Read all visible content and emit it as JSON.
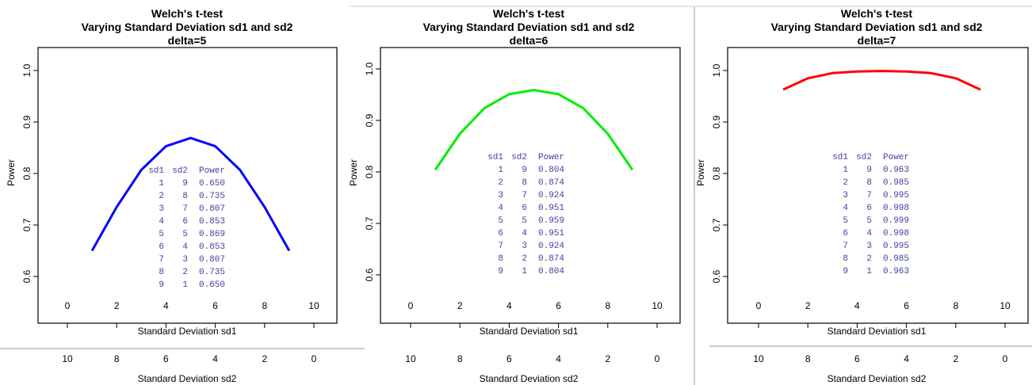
{
  "chart_data": [
    {
      "type": "line",
      "title": [
        "Welch's t-test",
        "Varying Standard Deviation sd1 and sd2",
        "delta=5"
      ],
      "xlabel": "Standard Deviation sd1",
      "ylabel": "Power",
      "x2label": "Standard Deviation sd2",
      "xlim": [
        0,
        10
      ],
      "ylim": [
        0.6,
        1.0
      ],
      "xticks": [
        0,
        2,
        4,
        6,
        8,
        10
      ],
      "yticks": [
        0.6,
        0.7,
        0.8,
        0.9,
        1.0
      ],
      "x2ticks": [
        10,
        8,
        6,
        4,
        2,
        0
      ],
      "color": "#0000ff",
      "x": [
        1,
        2,
        3,
        4,
        5,
        6,
        7,
        8,
        9
      ],
      "y": [
        0.65,
        0.735,
        0.807,
        0.853,
        0.869,
        0.853,
        0.807,
        0.735,
        0.65
      ],
      "table": {
        "headers": [
          "sd1",
          "sd2",
          "Power"
        ],
        "rows": [
          [
            "1",
            "9",
            "0.650"
          ],
          [
            "2",
            "8",
            "0.735"
          ],
          [
            "3",
            "7",
            "0.807"
          ],
          [
            "4",
            "6",
            "0.853"
          ],
          [
            "5",
            "5",
            "0.869"
          ],
          [
            "6",
            "4",
            "0.853"
          ],
          [
            "7",
            "3",
            "0.807"
          ],
          [
            "8",
            "2",
            "0.735"
          ],
          [
            "9",
            "1",
            "0.650"
          ]
        ]
      }
    },
    {
      "type": "line",
      "title": [
        "Welch's t-test",
        "Varying Standard Deviation sd1 and sd2",
        "delta=6"
      ],
      "xlabel": "Standard Deviation sd1",
      "ylabel": "Power",
      "x2label": "Standard Deviation sd2",
      "xlim": [
        0,
        10
      ],
      "ylim": [
        0.6,
        1.0
      ],
      "xticks": [
        0,
        2,
        4,
        6,
        8,
        10
      ],
      "yticks": [
        0.6,
        0.7,
        0.8,
        0.9,
        1.0
      ],
      "x2ticks": [
        10,
        8,
        6,
        4,
        2,
        0
      ],
      "color": "#00ee00",
      "x": [
        1,
        2,
        3,
        4,
        5,
        6,
        7,
        8,
        9
      ],
      "y": [
        0.804,
        0.874,
        0.924,
        0.951,
        0.959,
        0.951,
        0.924,
        0.874,
        0.804
      ],
      "table": {
        "headers": [
          "sd1",
          "sd2",
          "Power"
        ],
        "rows": [
          [
            "1",
            "9",
            "0.804"
          ],
          [
            "2",
            "8",
            "0.874"
          ],
          [
            "3",
            "7",
            "0.924"
          ],
          [
            "4",
            "6",
            "0.951"
          ],
          [
            "5",
            "5",
            "0.959"
          ],
          [
            "6",
            "4",
            "0.951"
          ],
          [
            "7",
            "3",
            "0.924"
          ],
          [
            "8",
            "2",
            "0.874"
          ],
          [
            "9",
            "1",
            "0.804"
          ]
        ]
      }
    },
    {
      "type": "line",
      "title": [
        "Welch's t-test",
        "Varying Standard Deviation sd1 and sd2",
        "delta=7"
      ],
      "xlabel": "Standard Deviation sd1",
      "ylabel": "Power",
      "x2label": "Standard Deviation sd2",
      "xlim": [
        0,
        10
      ],
      "ylim": [
        0.6,
        1.0
      ],
      "xticks": [
        0,
        2,
        4,
        6,
        8,
        10
      ],
      "yticks": [
        0.6,
        0.7,
        0.8,
        0.9,
        1.0
      ],
      "x2ticks": [
        10,
        8,
        6,
        4,
        2,
        0
      ],
      "color": "#ff0000",
      "x": [
        1,
        2,
        3,
        4,
        5,
        6,
        7,
        8,
        9
      ],
      "y": [
        0.963,
        0.985,
        0.995,
        0.998,
        0.999,
        0.998,
        0.995,
        0.985,
        0.963
      ],
      "table": {
        "headers": [
          "sd1",
          "sd2",
          "Power"
        ],
        "rows": [
          [
            "1",
            "9",
            "0.963"
          ],
          [
            "2",
            "8",
            "0.985"
          ],
          [
            "3",
            "7",
            "0.995"
          ],
          [
            "4",
            "6",
            "0.998"
          ],
          [
            "5",
            "5",
            "0.999"
          ],
          [
            "6",
            "4",
            "0.998"
          ],
          [
            "7",
            "3",
            "0.995"
          ],
          [
            "8",
            "2",
            "0.985"
          ],
          [
            "9",
            "1",
            "0.963"
          ]
        ]
      }
    }
  ]
}
